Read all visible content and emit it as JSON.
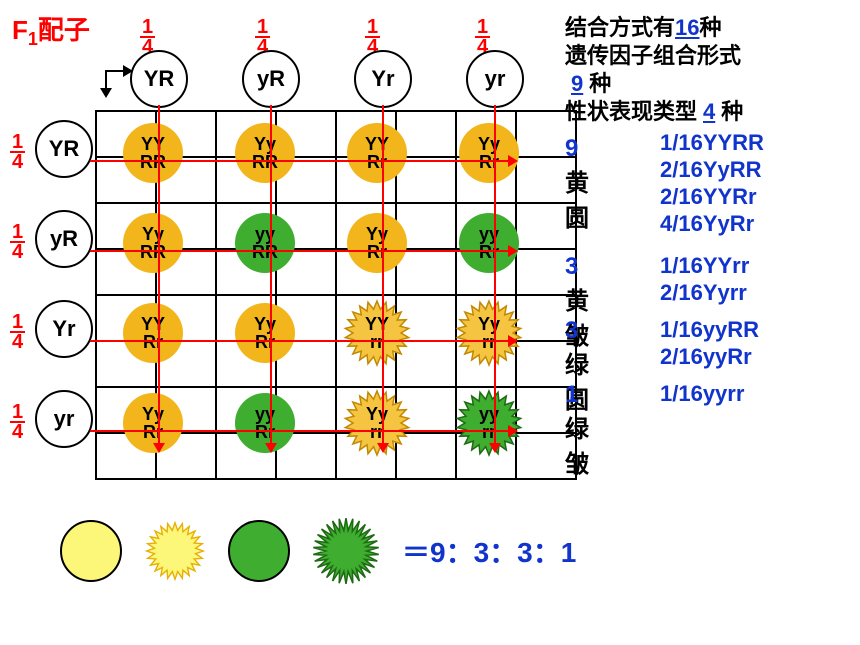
{
  "title_f1": "F",
  "title_sub": "1",
  "title_rest": "配子",
  "frac_top": "1",
  "frac_bot": "4",
  "gametes_top": [
    "YR",
    "yR",
    "Yr",
    "yr"
  ],
  "gametes_left": [
    "YR",
    "yR",
    "Yr",
    "yr"
  ],
  "grid": [
    [
      {
        "l1": "YY",
        "l2": "RR",
        "shape": "round",
        "color": "yellow"
      },
      {
        "l1": "Yy",
        "l2": "RR",
        "shape": "round",
        "color": "yellow"
      },
      {
        "l1": "YY",
        "l2": "Rr",
        "shape": "round",
        "color": "yellow"
      },
      {
        "l1": "Yy",
        "l2": "Rr",
        "shape": "round",
        "color": "yellow"
      }
    ],
    [
      {
        "l1": "Yy",
        "l2": "RR",
        "shape": "round",
        "color": "yellow"
      },
      {
        "l1": "yy",
        "l2": "RR",
        "shape": "round",
        "color": "green"
      },
      {
        "l1": "Yy",
        "l2": "Rr",
        "shape": "round",
        "color": "yellow"
      },
      {
        "l1": "yy",
        "l2": "Rr",
        "shape": "round",
        "color": "green"
      }
    ],
    [
      {
        "l1": "YY",
        "l2": "Rr",
        "shape": "round",
        "color": "yellow"
      },
      {
        "l1": "Yy",
        "l2": "Rr",
        "shape": "round",
        "color": "yellow"
      },
      {
        "l1": "YY",
        "l2": "rr",
        "shape": "star",
        "color": "yellow"
      },
      {
        "l1": "Yy",
        "l2": "rr",
        "shape": "star",
        "color": "yellow"
      }
    ],
    [
      {
        "l1": "Yy",
        "l2": "Rr",
        "shape": "round",
        "color": "yellow"
      },
      {
        "l1": "yy",
        "l2": "Rr",
        "shape": "round",
        "color": "green"
      },
      {
        "l1": "Yy",
        "l2": "rr",
        "shape": "star",
        "color": "yellow"
      },
      {
        "l1": "yy",
        "l2": "rr",
        "shape": "star",
        "color": "green"
      }
    ]
  ],
  "summary": {
    "line1_pre": "结合方式有",
    "line1_val": "16",
    "line1_post": "种",
    "line2": "遗传因子组合形式",
    "line3_val": "9",
    "line3_post": "种",
    "line4_pre": "性状表现类型",
    "line4_val": "4",
    "line4_post": "种"
  },
  "ratios": [
    {
      "n": "9",
      "label": "黄圆",
      "items": [
        "1/16YYRR",
        "2/16YyRR",
        "2/16YYRr",
        "4/16YyRr"
      ]
    },
    {
      "n": "3",
      "label": "黄皱",
      "items": [
        "1/16YYrr",
        "2/16Yyrr"
      ]
    },
    {
      "n": "3",
      "label": "绿圆",
      "items": [
        "1/16yyRR",
        "2/16yyRr"
      ]
    },
    {
      "n": "1",
      "label": "绿皱",
      "items": [
        "1/16yyrr"
      ]
    }
  ],
  "ratio_text": "＝9：3：3：1",
  "colors": {
    "yellow": "#f2b61c",
    "green": "#3fad2f",
    "legYellow": "#fcf679",
    "red": "#f00",
    "blue": "#1034cc"
  }
}
